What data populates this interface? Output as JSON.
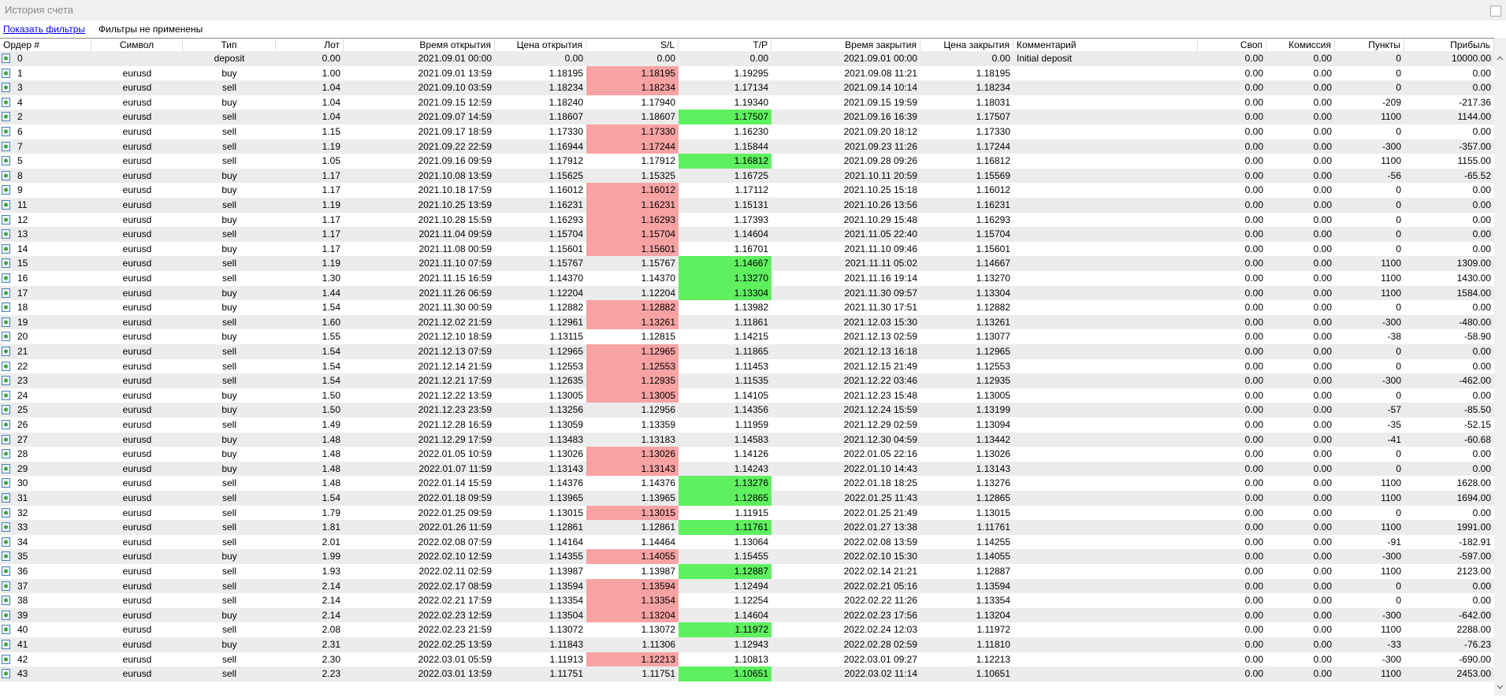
{
  "window": {
    "title": "История счета"
  },
  "toolbar": {
    "link": "Показать фильтры",
    "status": "Фильтры не применены"
  },
  "table": {
    "columns": [
      "Ордер #",
      "Символ",
      "Тип",
      "Лот",
      "Время открытия",
      "Цена открытия",
      "S/L",
      "T/P",
      "Время закрытия",
      "Цена закрытия",
      "Комментарий",
      "Своп",
      "Комиссия",
      "Пункты",
      "Прибыль"
    ],
    "sl_color": "#f7a3a3",
    "tp_color": "#5ff05f",
    "rows": [
      [
        "0",
        null,
        "deposit",
        "0.00",
        "2021.09.01 00:00",
        "0.00",
        "0.00",
        "0.00",
        "2021.09.01 00:00",
        "0.00",
        "Initial deposit",
        "0.00",
        "0.00",
        "0",
        "10000.00"
      ],
      [
        "1",
        "eurusd",
        "buy",
        "1.00",
        "2021.09.01 13:59",
        "1.18195",
        "1.18195",
        "1.19295",
        "2021.09.08 11:21",
        "1.18195",
        null,
        "0.00",
        "0.00",
        "0",
        "0.00"
      ],
      [
        "3",
        "eurusd",
        "sell",
        "1.04",
        "2021.09.10 03:59",
        "1.18234",
        "1.18234",
        "1.17134",
        "2021.09.14 10:14",
        "1.18234",
        null,
        "0.00",
        "0.00",
        "0",
        "0.00"
      ],
      [
        "4",
        "eurusd",
        "buy",
        "1.04",
        "2021.09.15 12:59",
        "1.18240",
        "1.17940",
        "1.19340",
        "2021.09.15 19:59",
        "1.18031",
        null,
        "0.00",
        "0.00",
        "-209",
        "-217.36"
      ],
      [
        "2",
        "eurusd",
        "sell",
        "1.04",
        "2021.09.07 14:59",
        "1.18607",
        "1.18607",
        "1.17507",
        "2021.09.16 16:39",
        "1.17507",
        null,
        "0.00",
        "0.00",
        "1100",
        "1144.00"
      ],
      [
        "6",
        "eurusd",
        "sell",
        "1.15",
        "2021.09.17 18:59",
        "1.17330",
        "1.17330",
        "1.16230",
        "2021.09.20 18:12",
        "1.17330",
        null,
        "0.00",
        "0.00",
        "0",
        "0.00"
      ],
      [
        "7",
        "eurusd",
        "sell",
        "1.19",
        "2021.09.22 22:59",
        "1.16944",
        "1.17244",
        "1.15844",
        "2021.09.23 11:26",
        "1.17244",
        null,
        "0.00",
        "0.00",
        "-300",
        "-357.00"
      ],
      [
        "5",
        "eurusd",
        "sell",
        "1.05",
        "2021.09.16 09:59",
        "1.17912",
        "1.17912",
        "1.16812",
        "2021.09.28 09:26",
        "1.16812",
        null,
        "0.00",
        "0.00",
        "1100",
        "1155.00"
      ],
      [
        "8",
        "eurusd",
        "buy",
        "1.17",
        "2021.10.08 13:59",
        "1.15625",
        "1.15325",
        "1.16725",
        "2021.10.11 20:59",
        "1.15569",
        null,
        "0.00",
        "0.00",
        "-56",
        "-65.52"
      ],
      [
        "9",
        "eurusd",
        "buy",
        "1.17",
        "2021.10.18 17:59",
        "1.16012",
        "1.16012",
        "1.17112",
        "2021.10.25 15:18",
        "1.16012",
        null,
        "0.00",
        "0.00",
        "0",
        "0.00"
      ],
      [
        "11",
        "eurusd",
        "sell",
        "1.19",
        "2021.10.25 13:59",
        "1.16231",
        "1.16231",
        "1.15131",
        "2021.10.26 13:56",
        "1.16231",
        null,
        "0.00",
        "0.00",
        "0",
        "0.00"
      ],
      [
        "12",
        "eurusd",
        "buy",
        "1.17",
        "2021.10.28 15:59",
        "1.16293",
        "1.16293",
        "1.17393",
        "2021.10.29 15:48",
        "1.16293",
        null,
        "0.00",
        "0.00",
        "0",
        "0.00"
      ],
      [
        "13",
        "eurusd",
        "sell",
        "1.17",
        "2021.11.04 09:59",
        "1.15704",
        "1.15704",
        "1.14604",
        "2021.11.05 22:40",
        "1.15704",
        null,
        "0.00",
        "0.00",
        "0",
        "0.00"
      ],
      [
        "14",
        "eurusd",
        "buy",
        "1.17",
        "2021.11.08 00:59",
        "1.15601",
        "1.15601",
        "1.16701",
        "2021.11.10 09:46",
        "1.15601",
        null,
        "0.00",
        "0.00",
        "0",
        "0.00"
      ],
      [
        "15",
        "eurusd",
        "sell",
        "1.19",
        "2021.11.10 07:59",
        "1.15767",
        "1.15767",
        "1.14667",
        "2021.11.11 05:02",
        "1.14667",
        null,
        "0.00",
        "0.00",
        "1100",
        "1309.00"
      ],
      [
        "16",
        "eurusd",
        "sell",
        "1.30",
        "2021.11.15 16:59",
        "1.14370",
        "1.14370",
        "1.13270",
        "2021.11.16 19:14",
        "1.13270",
        null,
        "0.00",
        "0.00",
        "1100",
        "1430.00"
      ],
      [
        "17",
        "eurusd",
        "buy",
        "1.44",
        "2021.11.26 06:59",
        "1.12204",
        "1.12204",
        "1.13304",
        "2021.11.30 09:57",
        "1.13304",
        null,
        "0.00",
        "0.00",
        "1100",
        "1584.00"
      ],
      [
        "18",
        "eurusd",
        "buy",
        "1.54",
        "2021.11.30 00:59",
        "1.12882",
        "1.12882",
        "1.13982",
        "2021.11.30 17:51",
        "1.12882",
        null,
        "0.00",
        "0.00",
        "0",
        "0.00"
      ],
      [
        "19",
        "eurusd",
        "sell",
        "1.60",
        "2021.12.02 21:59",
        "1.12961",
        "1.13261",
        "1.11861",
        "2021.12.03 15:30",
        "1.13261",
        null,
        "0.00",
        "0.00",
        "-300",
        "-480.00"
      ],
      [
        "20",
        "eurusd",
        "buy",
        "1.55",
        "2021.12.10 18:59",
        "1.13115",
        "1.12815",
        "1.14215",
        "2021.12.13 02:59",
        "1.13077",
        null,
        "0.00",
        "0.00",
        "-38",
        "-58.90"
      ],
      [
        "21",
        "eurusd",
        "sell",
        "1.54",
        "2021.12.13 07:59",
        "1.12965",
        "1.12965",
        "1.11865",
        "2021.12.13 16:18",
        "1.12965",
        null,
        "0.00",
        "0.00",
        "0",
        "0.00"
      ],
      [
        "22",
        "eurusd",
        "sell",
        "1.54",
        "2021.12.14 21:59",
        "1.12553",
        "1.12553",
        "1.11453",
        "2021.12.15 21:49",
        "1.12553",
        null,
        "0.00",
        "0.00",
        "0",
        "0.00"
      ],
      [
        "23",
        "eurusd",
        "sell",
        "1.54",
        "2021.12.21 17:59",
        "1.12635",
        "1.12935",
        "1.11535",
        "2021.12.22 03:46",
        "1.12935",
        null,
        "0.00",
        "0.00",
        "-300",
        "-462.00"
      ],
      [
        "24",
        "eurusd",
        "buy",
        "1.50",
        "2021.12.22 13:59",
        "1.13005",
        "1.13005",
        "1.14105",
        "2021.12.23 15:48",
        "1.13005",
        null,
        "0.00",
        "0.00",
        "0",
        "0.00"
      ],
      [
        "25",
        "eurusd",
        "buy",
        "1.50",
        "2021.12.23 23:59",
        "1.13256",
        "1.12956",
        "1.14356",
        "2021.12.24 15:59",
        "1.13199",
        null,
        "0.00",
        "0.00",
        "-57",
        "-85.50"
      ],
      [
        "26",
        "eurusd",
        "sell",
        "1.49",
        "2021.12.28 16:59",
        "1.13059",
        "1.13359",
        "1.11959",
        "2021.12.29 02:59",
        "1.13094",
        null,
        "0.00",
        "0.00",
        "-35",
        "-52.15"
      ],
      [
        "27",
        "eurusd",
        "buy",
        "1.48",
        "2021.12.29 17:59",
        "1.13483",
        "1.13183",
        "1.14583",
        "2021.12.30 04:59",
        "1.13442",
        null,
        "0.00",
        "0.00",
        "-41",
        "-60.68"
      ],
      [
        "28",
        "eurusd",
        "buy",
        "1.48",
        "2022.01.05 10:59",
        "1.13026",
        "1.13026",
        "1.14126",
        "2022.01.05 22:16",
        "1.13026",
        null,
        "0.00",
        "0.00",
        "0",
        "0.00"
      ],
      [
        "29",
        "eurusd",
        "buy",
        "1.48",
        "2022.01.07 11:59",
        "1.13143",
        "1.13143",
        "1.14243",
        "2022.01.10 14:43",
        "1.13143",
        null,
        "0.00",
        "0.00",
        "0",
        "0.00"
      ],
      [
        "30",
        "eurusd",
        "sell",
        "1.48",
        "2022.01.14 15:59",
        "1.14376",
        "1.14376",
        "1.13276",
        "2022.01.18 18:25",
        "1.13276",
        null,
        "0.00",
        "0.00",
        "1100",
        "1628.00"
      ],
      [
        "31",
        "eurusd",
        "sell",
        "1.54",
        "2022.01.18 09:59",
        "1.13965",
        "1.13965",
        "1.12865",
        "2022.01.25 11:43",
        "1.12865",
        null,
        "0.00",
        "0.00",
        "1100",
        "1694.00"
      ],
      [
        "32",
        "eurusd",
        "sell",
        "1.79",
        "2022.01.25 09:59",
        "1.13015",
        "1.13015",
        "1.11915",
        "2022.01.25 21:49",
        "1.13015",
        null,
        "0.00",
        "0.00",
        "0",
        "0.00"
      ],
      [
        "33",
        "eurusd",
        "sell",
        "1.81",
        "2022.01.26 11:59",
        "1.12861",
        "1.12861",
        "1.11761",
        "2022.01.27 13:38",
        "1.11761",
        null,
        "0.00",
        "0.00",
        "1100",
        "1991.00"
      ],
      [
        "34",
        "eurusd",
        "sell",
        "2.01",
        "2022.02.08 07:59",
        "1.14164",
        "1.14464",
        "1.13064",
        "2022.02.08 13:59",
        "1.14255",
        null,
        "0.00",
        "0.00",
        "-91",
        "-182.91"
      ],
      [
        "35",
        "eurusd",
        "buy",
        "1.99",
        "2022.02.10 12:59",
        "1.14355",
        "1.14055",
        "1.15455",
        "2022.02.10 15:30",
        "1.14055",
        null,
        "0.00",
        "0.00",
        "-300",
        "-597.00"
      ],
      [
        "36",
        "eurusd",
        "sell",
        "1.93",
        "2022.02.11 02:59",
        "1.13987",
        "1.13987",
        "1.12887",
        "2022.02.14 21:21",
        "1.12887",
        null,
        "0.00",
        "0.00",
        "1100",
        "2123.00"
      ],
      [
        "37",
        "eurusd",
        "sell",
        "2.14",
        "2022.02.17 08:59",
        "1.13594",
        "1.13594",
        "1.12494",
        "2022.02.21 05:16",
        "1.13594",
        null,
        "0.00",
        "0.00",
        "0",
        "0.00"
      ],
      [
        "38",
        "eurusd",
        "sell",
        "2.14",
        "2022.02.21 17:59",
        "1.13354",
        "1.13354",
        "1.12254",
        "2022.02.22 11:26",
        "1.13354",
        null,
        "0.00",
        "0.00",
        "0",
        "0.00"
      ],
      [
        "39",
        "eurusd",
        "buy",
        "2.14",
        "2022.02.23 12:59",
        "1.13504",
        "1.13204",
        "1.14604",
        "2022.02.23 17:56",
        "1.13204",
        null,
        "0.00",
        "0.00",
        "-300",
        "-642.00"
      ],
      [
        "40",
        "eurusd",
        "sell",
        "2.08",
        "2022.02.23 21:59",
        "1.13072",
        "1.13072",
        "1.11972",
        "2022.02.24 12:03",
        "1.11972",
        null,
        "0.00",
        "0.00",
        "1100",
        "2288.00"
      ],
      [
        "41",
        "eurusd",
        "buy",
        "2.31",
        "2022.02.25 13:59",
        "1.11843",
        "1.11306",
        "1.12943",
        "2022.02.28 02:59",
        "1.11810",
        null,
        "0.00",
        "0.00",
        "-33",
        "-76.23"
      ],
      [
        "42",
        "eurusd",
        "sell",
        "2.30",
        "2022.03.01 05:59",
        "1.11913",
        "1.12213",
        "1.10813",
        "2022.03.01 09:27",
        "1.12213",
        null,
        "0.00",
        "0.00",
        "-300",
        "-690.00"
      ],
      [
        "43",
        "eurusd",
        "sell",
        "2.23",
        "2022.03.01 13:59",
        "1.11751",
        "1.11751",
        "1.10651",
        "2022.03.02 11:14",
        "1.10651",
        null,
        "0.00",
        "0.00",
        "1100",
        "2453.00"
      ]
    ],
    "highlights": [
      null,
      "sl",
      "sl",
      null,
      "tp",
      "sl",
      "sl",
      "tp",
      null,
      "sl",
      "sl",
      "sl",
      "sl",
      "sl",
      "tp",
      "tp",
      "tp",
      "sl",
      "sl",
      null,
      "sl",
      "sl",
      "sl",
      "sl",
      null,
      null,
      null,
      "sl",
      "sl",
      "tp",
      "tp",
      "sl",
      "tp",
      null,
      "sl",
      "tp",
      "sl",
      "sl",
      "sl",
      "tp",
      null,
      "sl",
      "tp"
    ]
  }
}
